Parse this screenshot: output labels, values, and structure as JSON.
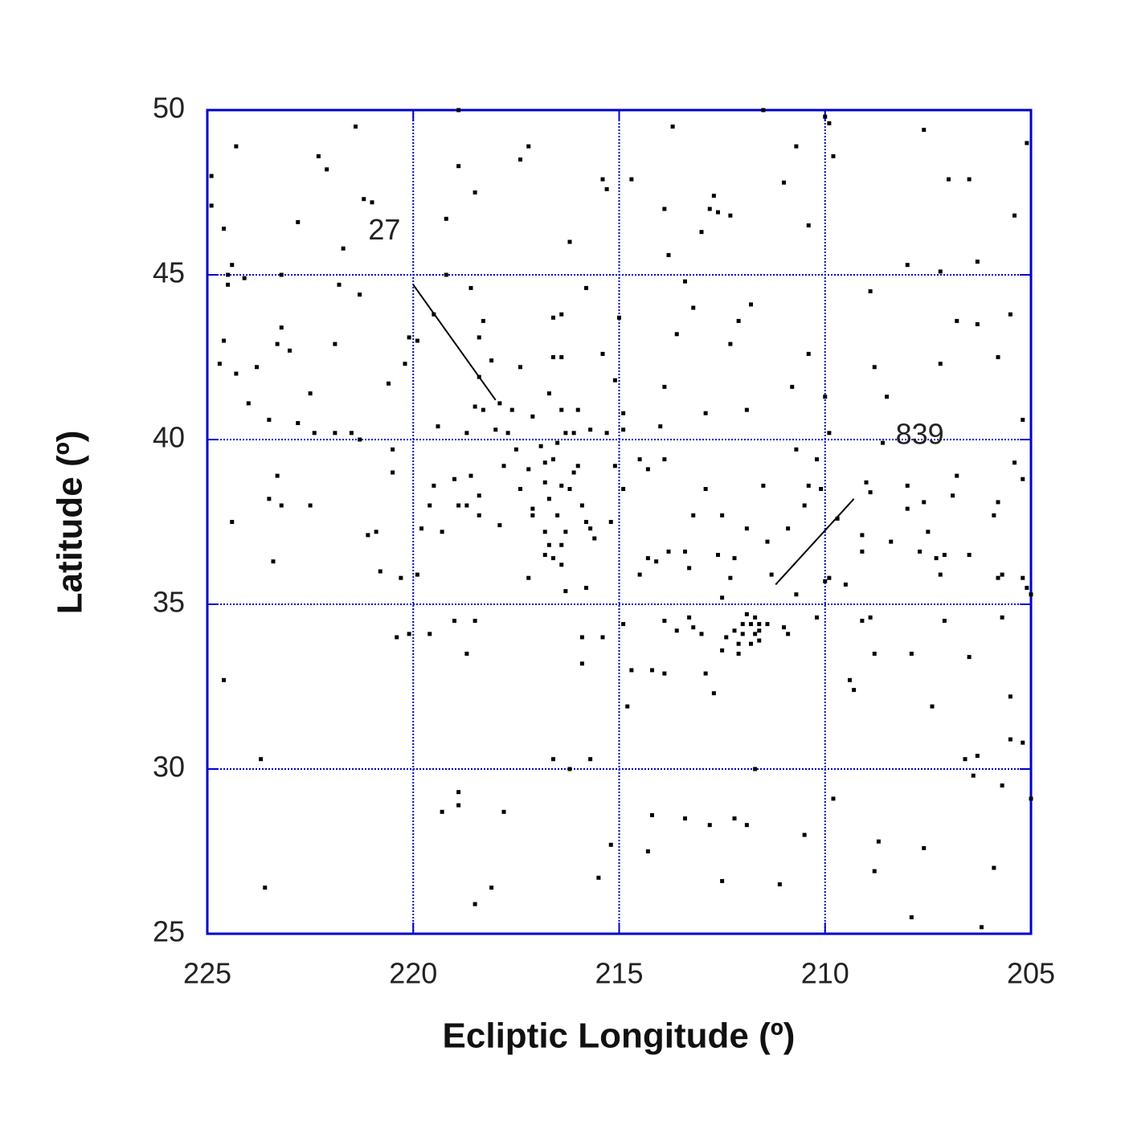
{
  "chart_data": {
    "type": "scatter",
    "xlabel": "Ecliptic Longitude (º)",
    "ylabel": "Latitude (º)",
    "xlim": [
      225,
      205
    ],
    "ylim": [
      25,
      50
    ],
    "xticks": [
      225,
      220,
      215,
      210,
      205
    ],
    "yticks": [
      25,
      30,
      35,
      40,
      45,
      50
    ],
    "grid": true,
    "color": "#000000",
    "axis_color": "#0000cc",
    "x": [
      224.9,
      224.3,
      224.9,
      224.6,
      221.4,
      222.3,
      222.1,
      222.8,
      221.2,
      221.0,
      221.7,
      218.9,
      218.9,
      218.5,
      219.2,
      217.4,
      217.2,
      215.4,
      215.3,
      214.7,
      216.2,
      213.7,
      211.5,
      210.7,
      211.0,
      212.7,
      212.8,
      212.6,
      212.3,
      213.0,
      213.9,
      213.8,
      210.0,
      209.9,
      209.8,
      210.4,
      207.6,
      207.0,
      206.5,
      205.1,
      205.4,
      208.0,
      207.2,
      206.3,
      208.9,
      224.5,
      224.4,
      224.1,
      223.2,
      224.5,
      221.8,
      221.3,
      224.6,
      224.7,
      224.3,
      223.8,
      224.0,
      223.3,
      223.2,
      223.0,
      222.5,
      221.9,
      223.5,
      222.8,
      222.4,
      221.9,
      221.5,
      221.3,
      220.6,
      220.2,
      220.1,
      219.9,
      219.2,
      218.6,
      219.5,
      218.3,
      218.4,
      218.1,
      218.4,
      219.4,
      218.7,
      218.5,
      218.3,
      217.9,
      217.6,
      218.0,
      217.7,
      217.1,
      217.4,
      216.7,
      216.6,
      216.4,
      216.6,
      216.4,
      216.4,
      216.0,
      215.8,
      215.4,
      215.0,
      215.1,
      214.9,
      214.9,
      216.3,
      216.1,
      215.7,
      215.3,
      213.4,
      213.2,
      213.6,
      213.9,
      214.0,
      212.9,
      212.3,
      212.1,
      211.8,
      211.9,
      210.4,
      210.8,
      210.0,
      209.9,
      208.8,
      208.5,
      208.6,
      206.8,
      206.3,
      207.2,
      205.8,
      205.5,
      205.2,
      224.4,
      223.3,
      223.5,
      223.2,
      222.5,
      223.4,
      221.1,
      220.9,
      220.8,
      220.5,
      220.5,
      220.3,
      219.9,
      219.8,
      219.6,
      219.5,
      219.3,
      219.0,
      218.9,
      218.7,
      218.6,
      218.4,
      218.4,
      217.9,
      217.8,
      217.5,
      217.4,
      217.2,
      217.1,
      217.1,
      217.2,
      216.9,
      216.8,
      216.8,
      216.6,
      216.5,
      216.7,
      216.5,
      216.8,
      216.7,
      216.8,
      216.6,
      216.4,
      216.4,
      216.3,
      216.4,
      216.2,
      216.1,
      216.0,
      215.9,
      215.7,
      215.6,
      215.8,
      215.2,
      215.1,
      214.9,
      216.3,
      215.8,
      214.5,
      214.3,
      213.9,
      214.3,
      214.1,
      213.8,
      214.5,
      213.4,
      213.3,
      213.2,
      212.9,
      212.5,
      211.9,
      212.6,
      212.2,
      212.3,
      212.5,
      211.5,
      211.4,
      211.3,
      210.9,
      210.7,
      210.7,
      210.5,
      210.4,
      210.2,
      210.1,
      210.0,
      209.9,
      209.5,
      209.7,
      209.0,
      208.9,
      209.1,
      209.1,
      208.4,
      208.0,
      208.0,
      207.6,
      207.7,
      207.5,
      207.3,
      207.2,
      207.1,
      206.8,
      206.9,
      206.5,
      205.8,
      205.9,
      205.4,
      205.2,
      205.8,
      205.7,
      205.2,
      205.1,
      205.0,
      211.9,
      211.7,
      212.0,
      211.8,
      211.6,
      212.2,
      212.0,
      211.7,
      211.6,
      212.1,
      211.8,
      211.6,
      212.4,
      212.1,
      211.4,
      211.0,
      210.9,
      212.5,
      224.6,
      223.7,
      223.6,
      220.4,
      220.1,
      219.6,
      219.0,
      218.7,
      218.5,
      219.3,
      218.9,
      218.9,
      218.5,
      218.1,
      217.8,
      216.6,
      216.2,
      215.7,
      215.9,
      215.9,
      215.4,
      215.2,
      215.5,
      214.9,
      214.8,
      214.7,
      214.2,
      213.9,
      213.9,
      213.6,
      213.3,
      213.2,
      213.0,
      212.9,
      212.7,
      214.2,
      214.3,
      213.4,
      212.8,
      212.2,
      211.9,
      212.5,
      211.7,
      211.1,
      210.2,
      209.8,
      210.5,
      209.4,
      209.3,
      209.1,
      208.9,
      208.8,
      208.7,
      208.8,
      207.9,
      207.4,
      207.1,
      206.5,
      207.6,
      207.9,
      205.7,
      205.5,
      205.5,
      205.2,
      206.6,
      206.3,
      206.4,
      205.7,
      205.0,
      205.9,
      206.2
    ],
    "y": [
      48.0,
      48.9,
      47.1,
      46.4,
      49.5,
      48.6,
      48.2,
      46.6,
      47.3,
      47.2,
      45.8,
      50.0,
      48.3,
      47.5,
      46.7,
      48.5,
      48.9,
      47.9,
      47.6,
      47.9,
      46.0,
      49.5,
      50.0,
      48.9,
      47.8,
      47.4,
      47.0,
      46.9,
      46.8,
      46.3,
      47.0,
      45.6,
      49.8,
      49.6,
      48.6,
      46.5,
      49.4,
      47.9,
      47.9,
      49.0,
      46.8,
      45.3,
      45.1,
      45.4,
      44.5,
      45.0,
      45.3,
      44.9,
      45.0,
      44.7,
      44.7,
      44.4,
      43.0,
      42.3,
      42.0,
      42.2,
      41.1,
      42.9,
      43.4,
      42.7,
      41.4,
      42.9,
      40.6,
      40.5,
      40.2,
      40.2,
      40.2,
      40.0,
      41.7,
      42.3,
      43.1,
      43.0,
      45.0,
      44.6,
      43.8,
      43.6,
      43.1,
      42.4,
      41.9,
      40.4,
      40.2,
      41.0,
      40.9,
      41.1,
      40.9,
      40.3,
      40.2,
      40.7,
      42.2,
      41.4,
      43.7,
      43.8,
      42.5,
      42.5,
      40.9,
      40.9,
      44.6,
      42.6,
      43.7,
      41.8,
      40.8,
      40.3,
      40.2,
      40.2,
      40.3,
      40.2,
      44.8,
      44.0,
      43.2,
      41.6,
      40.4,
      40.8,
      42.9,
      43.6,
      44.1,
      40.9,
      42.6,
      41.6,
      41.3,
      40.2,
      42.2,
      41.3,
      39.9,
      43.6,
      43.5,
      42.3,
      42.5,
      43.8,
      40.6,
      37.5,
      38.9,
      38.2,
      38.0,
      38.0,
      36.3,
      37.1,
      37.2,
      36.0,
      39.7,
      39.0,
      35.8,
      35.9,
      37.3,
      38.0,
      38.6,
      37.2,
      38.8,
      38.0,
      38.0,
      38.9,
      38.3,
      37.7,
      37.4,
      39.2,
      39.7,
      38.5,
      39.1,
      37.9,
      37.7,
      35.8,
      39.8,
      39.3,
      38.7,
      39.4,
      39.9,
      38.2,
      37.7,
      37.2,
      36.8,
      36.5,
      36.4,
      36.8,
      36.2,
      37.2,
      38.6,
      38.5,
      39.0,
      39.2,
      38.0,
      37.3,
      37.0,
      37.5,
      37.5,
      39.2,
      38.5,
      35.4,
      35.5,
      39.4,
      39.1,
      39.4,
      36.4,
      36.3,
      36.6,
      35.9,
      36.6,
      36.1,
      37.7,
      38.5,
      37.7,
      37.3,
      36.5,
      36.4,
      35.8,
      35.2,
      38.6,
      36.9,
      35.9,
      37.3,
      35.3,
      39.7,
      38.0,
      38.6,
      39.4,
      38.5,
      35.7,
      35.8,
      35.6,
      37.6,
      38.7,
      38.4,
      37.1,
      36.6,
      36.9,
      38.6,
      37.9,
      38.1,
      36.6,
      37.2,
      36.4,
      35.9,
      36.5,
      38.9,
      38.3,
      36.5,
      38.1,
      37.7,
      39.3,
      38.8,
      35.8,
      35.9,
      35.8,
      35.5,
      35.3,
      34.7,
      34.6,
      34.4,
      34.4,
      34.4,
      34.2,
      34.1,
      34.1,
      34.2,
      33.8,
      33.8,
      33.9,
      34.0,
      33.5,
      34.4,
      34.3,
      34.1,
      33.6,
      32.7,
      30.3,
      26.4,
      34.0,
      34.1,
      34.1,
      34.5,
      33.5,
      34.5,
      28.7,
      29.3,
      28.9,
      25.9,
      26.4,
      28.7,
      30.3,
      30.0,
      30.3,
      34.0,
      33.2,
      34.0,
      27.7,
      26.7,
      34.4,
      31.9,
      33.0,
      33.0,
      32.9,
      34.5,
      34.2,
      34.6,
      34.3,
      34.1,
      32.9,
      32.3,
      28.6,
      27.5,
      28.5,
      28.3,
      28.5,
      28.3,
      26.6,
      30.0,
      26.5,
      34.6,
      29.1,
      28.0,
      32.7,
      32.4,
      34.5,
      34.6,
      33.5,
      27.8,
      26.9,
      33.5,
      31.9,
      34.5,
      33.4,
      27.6,
      25.5,
      34.6,
      32.2,
      30.9,
      30.8,
      30.3,
      30.4,
      29.8,
      29.5,
      29.1,
      27.0,
      25.2
    ],
    "lines": [
      {
        "x": [
          220.0,
          218.0
        ],
        "y": [
          44.7,
          41.2
        ]
      },
      {
        "x": [
          211.2,
          209.3
        ],
        "y": [
          35.6,
          38.2
        ]
      }
    ],
    "annotations": [
      {
        "text": "27",
        "x": 220.7,
        "y": 46.3
      },
      {
        "text": "839",
        "x": 207.7,
        "y": 40.1
      }
    ]
  }
}
